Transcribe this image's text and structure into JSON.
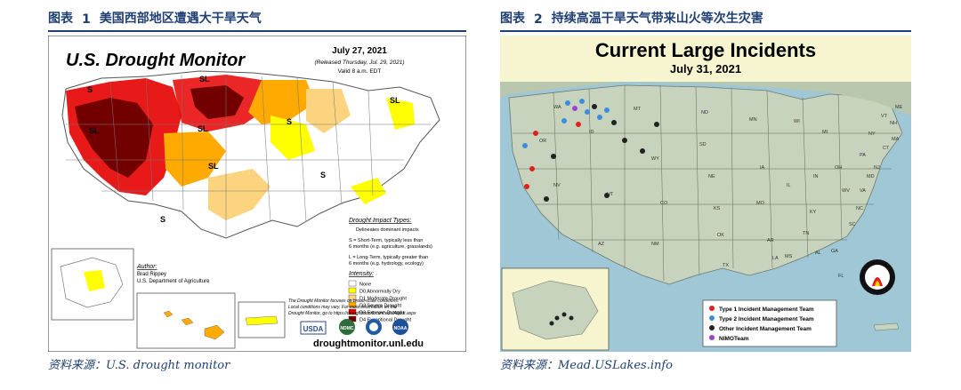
{
  "left_figure": {
    "label": "图表",
    "number": "1",
    "title": "美国西部地区遭遇大干旱天气",
    "source": "资料来源：U.S. drought monitor",
    "map": {
      "heading": "U.S. Drought Monitor",
      "date": "July 27, 2021",
      "released": "(Released Thursday, Jul. 29, 2021)",
      "valid": "Valid 8 a.m. EDT",
      "impact_title": "Drought Impact Types:",
      "impact_delim": "Delineates dominant impacts",
      "impact_s_line1": "S = Short-Term, typically less than",
      "impact_s_line2": "6 months (e.g. agriculture, grasslands)",
      "impact_l_line1": "L = Long-Term, typically greater than",
      "impact_l_line2": "6 months (e.g. hydrology, ecology)",
      "intensity_title": "Intensity:",
      "legend": [
        {
          "label": "None",
          "color": "#ffffff"
        },
        {
          "label": "D0 Abnormally Dry",
          "color": "#ffff00"
        },
        {
          "label": "D1 Moderate Drought",
          "color": "#fcd37f"
        },
        {
          "label": "D2 Severe Drought",
          "color": "#ffaa00"
        },
        {
          "label": "D3 Extreme Drought",
          "color": "#e60000"
        },
        {
          "label": "D4 Exceptional Drought",
          "color": "#730000"
        }
      ],
      "note_line1": "The Drought Monitor focuses on broad-scale conditions.",
      "note_line2": "Local conditions may vary. For more information on the",
      "note_line3": "Drought Monitor, go to https://droughtmonitor.unl.edu/About.aspx",
      "author_title": "Author:",
      "author_name": "Brad Rippey",
      "author_org": "U.S. Department of Agriculture",
      "region_labels": [
        "S",
        "SL",
        "SL",
        "SL",
        "SL",
        "SL",
        "S",
        "S",
        "S",
        "S"
      ],
      "logos": [
        "USDA",
        "NDMC",
        "NOAA"
      ],
      "url": "droughtmonitor.unl.edu"
    }
  },
  "right_figure": {
    "label": "图表",
    "number": "2",
    "title": "持续高温干旱天气带来山火等次生灾害",
    "source": "资料来源：Mead.USLakes.info",
    "map": {
      "heading": "Current Large Incidents",
      "date": "July 31, 2021",
      "legend": [
        {
          "label": "Type 1 Incident Management Team",
          "color": "#e02020"
        },
        {
          "label": "Type 2 Incident Management Team",
          "color": "#3a8ee0"
        },
        {
          "label": "Other Incident Management Team",
          "color": "#222222"
        },
        {
          "label": "NIMOTeam",
          "color": "#a040d0"
        }
      ],
      "state_labels": [
        "WA",
        "OR",
        "ID",
        "MT",
        "WY",
        "NV",
        "UT",
        "CO",
        "AZ",
        "NM",
        "ND",
        "SD",
        "NE",
        "KS",
        "OK",
        "TX",
        "MN",
        "IA",
        "MO",
        "AR",
        "LA",
        "WI",
        "IL",
        "MI",
        "IN",
        "OH",
        "KY",
        "TN",
        "MS",
        "AL",
        "GA",
        "FL",
        "SC",
        "NC",
        "VA",
        "WV",
        "PA",
        "NY",
        "VT",
        "ME",
        "NH",
        "MA",
        "CT",
        "NJ",
        "MD"
      ]
    }
  }
}
